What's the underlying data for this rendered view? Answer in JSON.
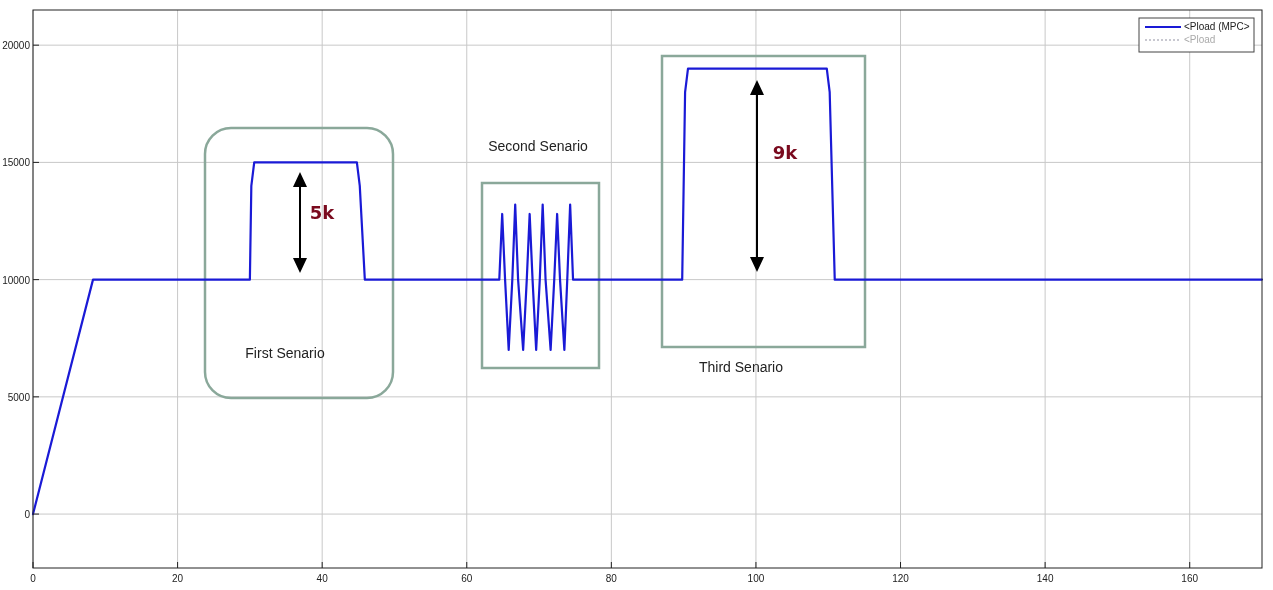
{
  "chart_data": {
    "type": "line",
    "x": [
      0,
      8.3,
      30,
      30.2,
      30.6,
      44.8,
      45.2,
      45.9,
      64.5,
      64.9,
      65.3,
      65.8,
      66.3,
      66.7,
      67.1,
      67.8,
      68.3,
      68.7,
      69.1,
      69.6,
      70.1,
      70.5,
      70.9,
      71.6,
      72.1,
      72.5,
      72.9,
      73.5,
      73.9,
      74.3,
      74.7,
      89.8,
      90.2,
      90.6,
      109.8,
      110.2,
      110.9,
      170
    ],
    "series": [
      {
        "name": "<Pload",
        "color": "#c8c8d0",
        "line_style": "dotted",
        "values": [
          null,
          null,
          null,
          null,
          null,
          null,
          null,
          null,
          null,
          null,
          null,
          null,
          null,
          null,
          null,
          null,
          null,
          null,
          null,
          null,
          null,
          null,
          null,
          null,
          null,
          null,
          null,
          null,
          null,
          null,
          null,
          null,
          null,
          null,
          null,
          null,
          null,
          null
        ]
      },
      {
        "name": "<Pload (MPC>",
        "color": "#1a1ad6",
        "line_style": "solid",
        "values": [
          0,
          10000,
          10000,
          14000,
          15000,
          15000,
          14000,
          10000,
          10000,
          12800,
          10000,
          7000,
          10000,
          13200,
          10000,
          7000,
          10000,
          12800,
          10000,
          7000,
          10000,
          13200,
          10000,
          7000,
          10000,
          12800,
          10000,
          7000,
          10000,
          13200,
          10000,
          10000,
          18000,
          19000,
          19000,
          18000,
          10000,
          10000
        ]
      }
    ],
    "xlim": [
      0,
      170
    ],
    "xticks": [
      0,
      20,
      40,
      60,
      80,
      100,
      120,
      140,
      160
    ],
    "ylim": [
      -2300,
      21500
    ],
    "yticks": [
      0,
      5000,
      10000,
      15000,
      20000
    ],
    "grid": true,
    "legend": "top right",
    "annotations": [
      "First Senario",
      "Second Senario",
      "Third Senario",
      "5k",
      "9k"
    ]
  }
}
